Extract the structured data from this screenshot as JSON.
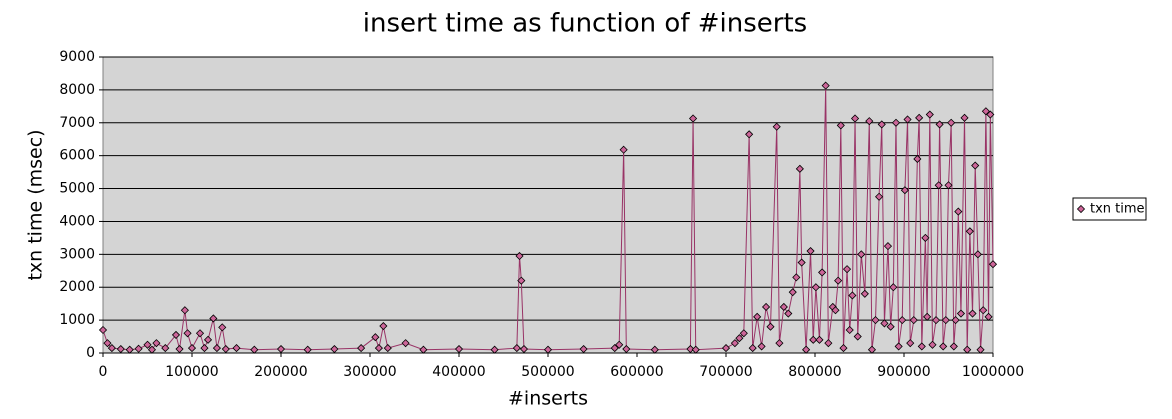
{
  "chart_data": {
    "type": "line",
    "title": "insert time as function of #inserts",
    "x_label": "#inserts",
    "y_label": "txn time (msec)",
    "x": [
      0,
      5000,
      10000,
      20000,
      30000,
      40000,
      50000,
      55000,
      60000,
      70000,
      82000,
      86000,
      92000,
      95000,
      100000,
      109000,
      114000,
      118000,
      124000,
      128000,
      134000,
      138000,
      150000,
      170000,
      200000,
      230000,
      260000,
      290000,
      306000,
      310000,
      315000,
      320000,
      340000,
      360000,
      400000,
      440000,
      465000,
      468000,
      470000,
      473000,
      500000,
      540000,
      575000,
      580000,
      585000,
      588000,
      620000,
      660000,
      663000,
      666000,
      700000,
      710000,
      715000,
      720000,
      726000,
      730000,
      735000,
      740000,
      745000,
      750000,
      757000,
      760000,
      765000,
      770000,
      775000,
      779000,
      783000,
      785000,
      790000,
      795000,
      798000,
      801000,
      805000,
      808000,
      812000,
      815000,
      820000,
      823000,
      826000,
      829000,
      832000,
      836000,
      839000,
      842000,
      845000,
      848000,
      852000,
      856000,
      861000,
      864000,
      868000,
      872000,
      875000,
      878000,
      882000,
      885000,
      888000,
      891000,
      894000,
      898000,
      901000,
      904000,
      907000,
      911000,
      915000,
      917000,
      920000,
      924000,
      926000,
      929000,
      932000,
      936000,
      939000,
      940000,
      944000,
      947000,
      950000,
      953000,
      956000,
      958000,
      961000,
      964000,
      968000,
      971000,
      974000,
      977000,
      980000,
      983000,
      986000,
      989000,
      992000,
      995000,
      997000,
      1000000
    ],
    "series": [
      {
        "name": "txn time",
        "color": "#993366",
        "marker_color": "#cc6699",
        "values": [
          700,
          300,
          150,
          120,
          100,
          130,
          250,
          100,
          300,
          150,
          550,
          120,
          1300,
          600,
          150,
          600,
          150,
          400,
          1050,
          150,
          780,
          120,
          150,
          100,
          120,
          100,
          120,
          150,
          480,
          150,
          820,
          150,
          300,
          100,
          120,
          100,
          150,
          2950,
          2200,
          120,
          100,
          120,
          150,
          250,
          6180,
          120,
          100,
          120,
          7130,
          100,
          150,
          300,
          450,
          600,
          6650,
          150,
          1100,
          200,
          1400,
          800,
          6880,
          300,
          1400,
          1200,
          1850,
          2300,
          5600,
          2750,
          100,
          3100,
          400,
          2000,
          400,
          2450,
          8130,
          300,
          1400,
          1300,
          2200,
          6920,
          150,
          2550,
          700,
          1750,
          7130,
          500,
          3000,
          1800,
          7050,
          100,
          1000,
          4750,
          6950,
          900,
          3250,
          800,
          2000,
          7000,
          200,
          1000,
          4950,
          7100,
          300,
          1000,
          5900,
          7150,
          200,
          3500,
          1100,
          7250,
          250,
          1000,
          5100,
          6950,
          200,
          1000,
          5100,
          7000,
          200,
          1000,
          4300,
          1200,
          7150,
          100,
          3700,
          1200,
          5700,
          3000,
          100,
          1300,
          7350,
          1100,
          7250,
          2700
        ]
      }
    ],
    "xlim": [
      0,
      1000000
    ],
    "xticks": [
      0,
      100000,
      200000,
      300000,
      400000,
      500000,
      600000,
      700000,
      800000,
      900000,
      1000000
    ],
    "ylim": [
      0,
      9000
    ],
    "yticks": [
      0,
      1000,
      2000,
      3000,
      4000,
      5000,
      6000,
      7000,
      8000,
      9000
    ],
    "grid": true,
    "legend": "right"
  }
}
